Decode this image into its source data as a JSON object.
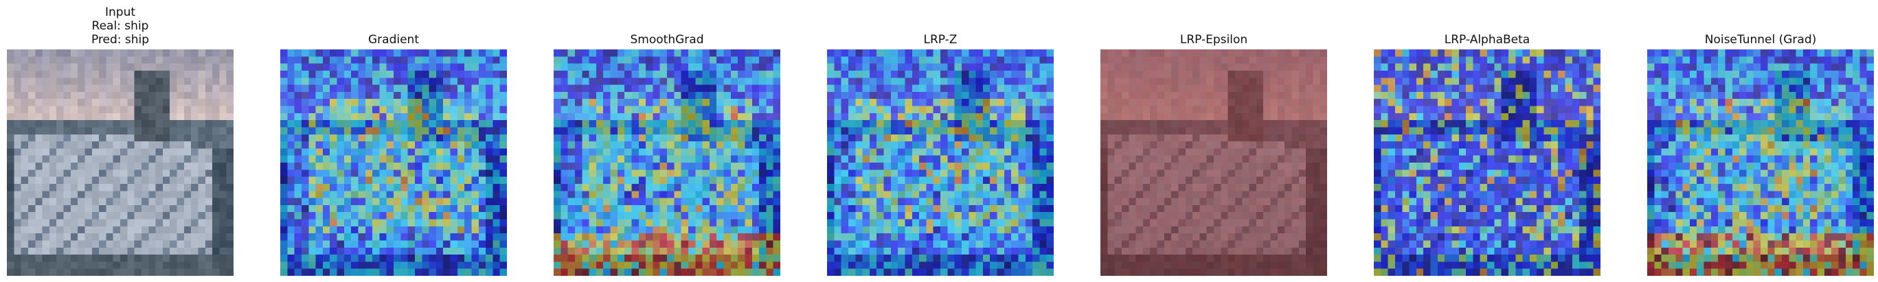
{
  "figure": {
    "panels": [
      {
        "id": "input",
        "title_lines": [
          "Input",
          "Real: ship",
          "Pred: ship"
        ],
        "overlay": "none"
      },
      {
        "id": "gradient",
        "title_lines": [
          "Gradient"
        ],
        "overlay": "jet"
      },
      {
        "id": "smoothgrad",
        "title_lines": [
          "SmoothGrad"
        ],
        "overlay": "jet-bottom"
      },
      {
        "id": "lrp-z",
        "title_lines": [
          "LRP-Z"
        ],
        "overlay": "jet"
      },
      {
        "id": "lrp-epsilon",
        "title_lines": [
          "LRP-Epsilon"
        ],
        "overlay": "red"
      },
      {
        "id": "lrp-alphabeta",
        "title_lines": [
          "LRP-AlphaBeta"
        ],
        "overlay": "jet-sparse"
      },
      {
        "id": "noisetunnel-grad",
        "title_lines": [
          "NoiseTunnel (Grad)"
        ],
        "overlay": "jet-bottom"
      }
    ]
  }
}
